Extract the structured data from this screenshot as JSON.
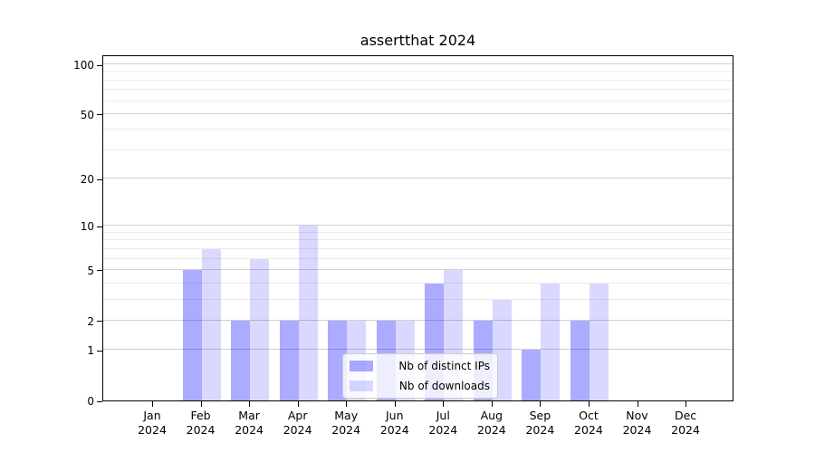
{
  "chart_data": {
    "type": "bar",
    "title": "assertthat 2024",
    "x": {
      "categories": [
        "Jan",
        "Feb",
        "Mar",
        "Apr",
        "May",
        "Jun",
        "Jul",
        "Aug",
        "Sep",
        "Oct",
        "Nov",
        "Dec"
      ],
      "year_label": "2024"
    },
    "series": [
      {
        "name": "Nb of distinct IPs",
        "color": "rgba(0,0,255,0.33)",
        "values": [
          0,
          5,
          2,
          2,
          2,
          2,
          4,
          2,
          1,
          2,
          0,
          0
        ]
      },
      {
        "name": "Nb of downloads",
        "color": "rgba(0,0,255,0.15)",
        "values": [
          0,
          7,
          6,
          10,
          2,
          2,
          5,
          3,
          4,
          4,
          0,
          0
        ]
      }
    ],
    "y_axis": {
      "scale": "log1p",
      "major_ticks": [
        0,
        1,
        2,
        5,
        10,
        20,
        50,
        100
      ],
      "minor_ticks": [
        3,
        4,
        6,
        7,
        8,
        9,
        30,
        40,
        60,
        70,
        80,
        90
      ],
      "ylim": [
        0,
        112
      ]
    },
    "legend": {
      "location": "lower center"
    },
    "grid": true
  },
  "colors": {
    "bar_distinct_ips": "rgba(0,0,255,0.33)",
    "bar_downloads": "rgba(0,0,255,0.15)",
    "major_grid": "#d0d0d0",
    "minor_grid": "#ebebeb",
    "axis": "#000000",
    "legend_border": "#cccccc"
  }
}
